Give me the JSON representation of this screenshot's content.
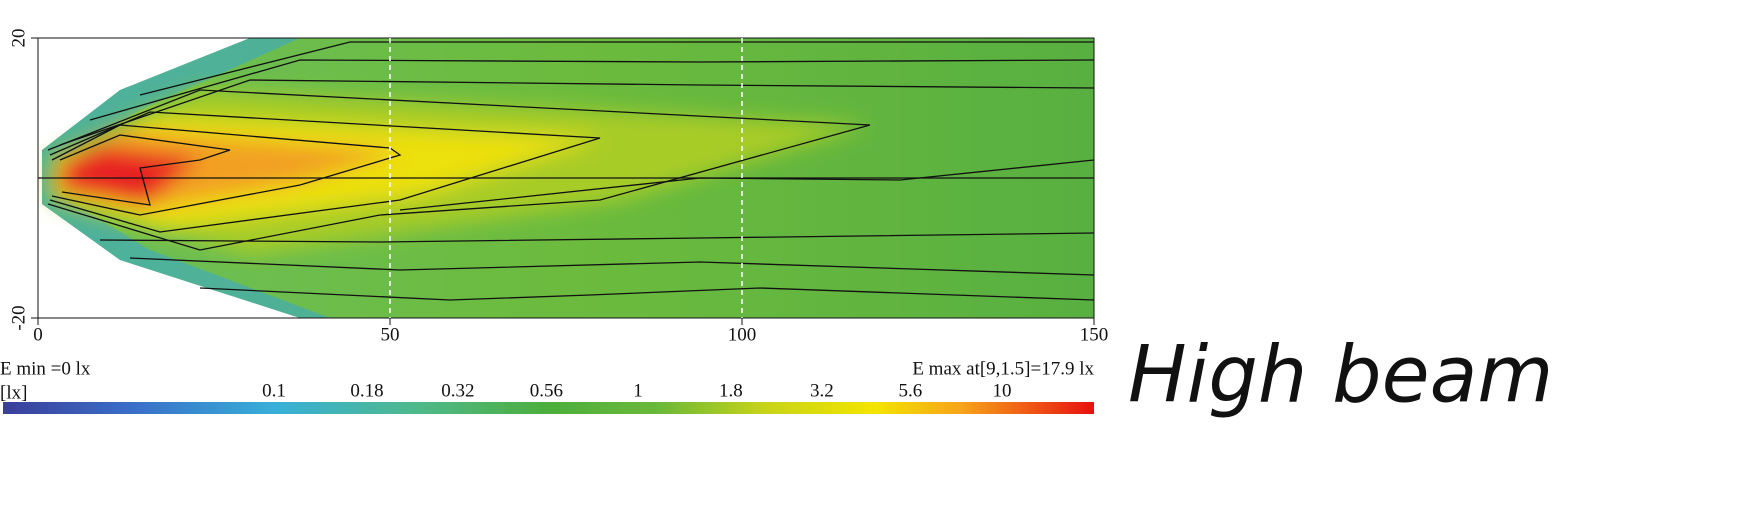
{
  "chart_data": {
    "type": "isolux",
    "xlim": [
      0,
      150
    ],
    "xticks": [
      0,
      50,
      100,
      150
    ],
    "ylim": [
      -20,
      20
    ],
    "yticks": [
      20,
      -20
    ],
    "emin_label": "E min =0 lx",
    "emax_label": "E max at[9,1.5]=17.9 lx",
    "colorbar": {
      "unit": "[lx]",
      "log": true,
      "lim": [
        0.018,
        17.9
      ],
      "ticks": [
        0.1,
        0.18,
        0.32,
        0.56,
        1,
        1.8,
        3.2,
        5.6,
        10
      ]
    },
    "label": "High beam"
  }
}
